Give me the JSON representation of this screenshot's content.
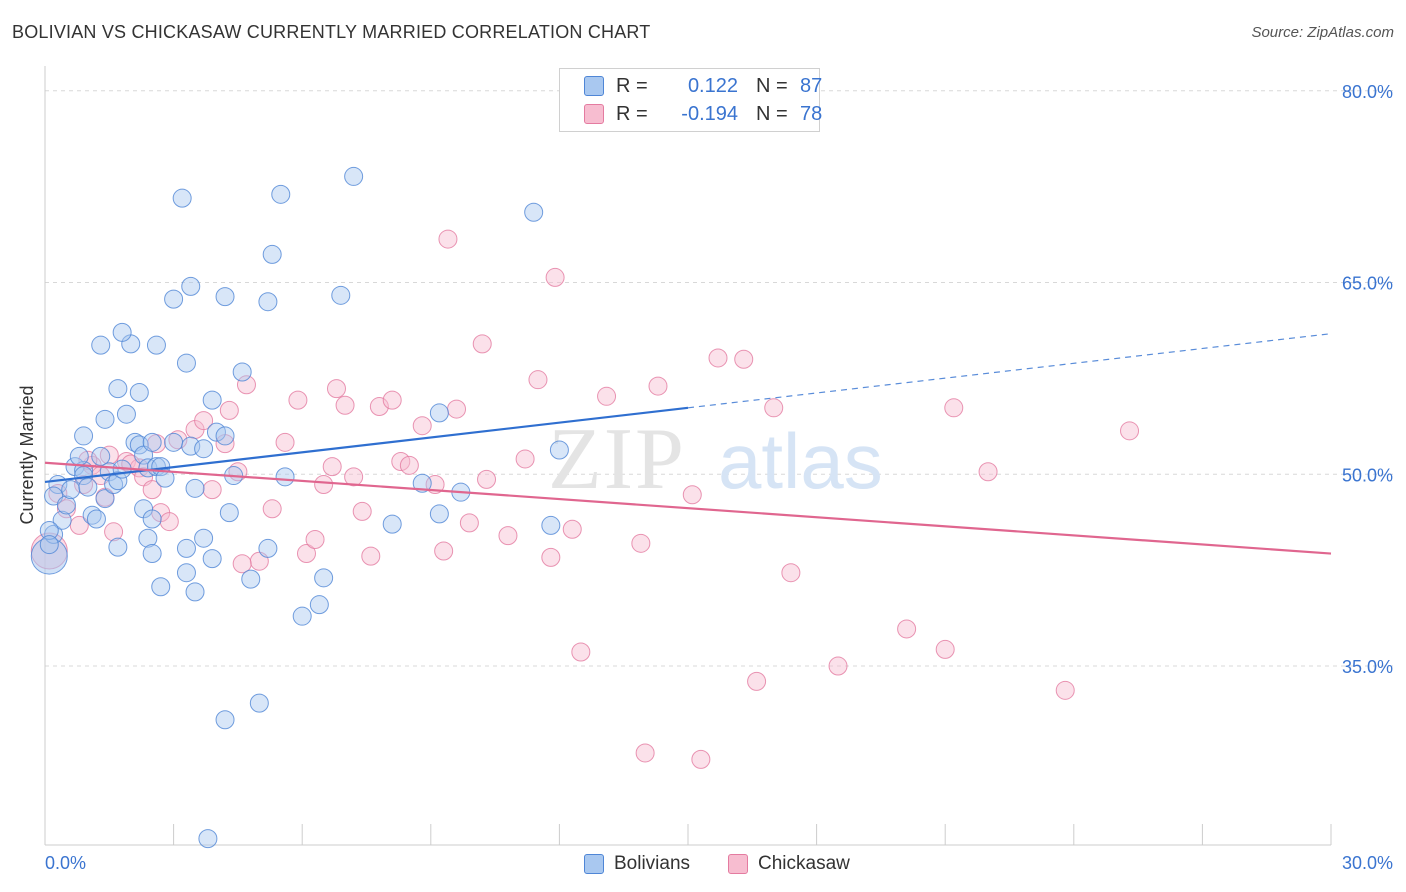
{
  "title": "BOLIVIAN VS CHICKASAW CURRENTLY MARRIED CORRELATION CHART",
  "source": "Source: ZipAtlas.com",
  "watermark": {
    "zip": "ZIP",
    "atlas": "atlas"
  },
  "legend": {
    "r_label": "R =",
    "n_label": "N =",
    "bolivians": {
      "r": "0.122",
      "n": "87"
    },
    "chickasaw": {
      "r": "-0.194",
      "n": "78"
    }
  },
  "colors": {
    "blue_fill": "#a9c8f0",
    "blue_stroke": "#4f86d6",
    "blue_line": "#2f6fd0",
    "pink_fill": "#f7bdd0",
    "pink_stroke": "#e47ba0",
    "pink_line": "#e0668f",
    "axis_text": "#3a74d0",
    "grid": "#d8d8d8"
  },
  "chart_data": {
    "type": "scatter",
    "xlabel": "",
    "ylabel": "Currently Married",
    "xlim": [
      0,
      30
    ],
    "ylim": [
      21,
      81
    ],
    "x_tick_labels": [
      "0.0%",
      "30.0%"
    ],
    "y_ticks": [
      35,
      50,
      65,
      80
    ],
    "y_tick_labels": [
      "35.0%",
      "50.0%",
      "65.0%",
      "80.0%"
    ],
    "series": [
      {
        "name": "Bolivians",
        "r": 0.122,
        "n": 87,
        "trend": {
          "x0": 0,
          "y0": 49.4,
          "x1": 15,
          "y1": 55.2,
          "x_dash_end": 30,
          "y_dash_end": 61.0
        },
        "points": [
          [
            0.1,
            43.6
          ],
          [
            0.2,
            45.3
          ],
          [
            0.3,
            49.2
          ],
          [
            0.2,
            48.3
          ],
          [
            0.4,
            46.4
          ],
          [
            0.5,
            47.6
          ],
          [
            0.6,
            48.8
          ],
          [
            0.7,
            50.6
          ],
          [
            0.9,
            50.3
          ],
          [
            0.8,
            51.4
          ],
          [
            0.9,
            49.9
          ],
          [
            1.1,
            46.8
          ],
          [
            1.2,
            46.5
          ],
          [
            1.0,
            49.0
          ],
          [
            1.3,
            51.4
          ],
          [
            1.4,
            48.1
          ],
          [
            1.5,
            50.2
          ],
          [
            1.6,
            49.2
          ],
          [
            1.7,
            49.5
          ],
          [
            1.8,
            50.4
          ],
          [
            0.9,
            53.0
          ],
          [
            1.4,
            54.3
          ],
          [
            1.9,
            54.7
          ],
          [
            2.1,
            52.5
          ],
          [
            2.2,
            52.3
          ],
          [
            2.3,
            51.5
          ],
          [
            2.4,
            50.5
          ],
          [
            2.6,
            50.6
          ],
          [
            2.7,
            50.6
          ],
          [
            2.5,
            52.5
          ],
          [
            2.8,
            49.7
          ],
          [
            3.0,
            52.5
          ],
          [
            3.4,
            52.2
          ],
          [
            3.5,
            48.9
          ],
          [
            3.7,
            52.0
          ],
          [
            4.0,
            53.3
          ],
          [
            4.2,
            53.0
          ],
          [
            4.4,
            49.9
          ],
          [
            1.7,
            56.7
          ],
          [
            2.2,
            56.4
          ],
          [
            2.0,
            60.2
          ],
          [
            2.6,
            60.1
          ],
          [
            3.3,
            58.7
          ],
          [
            3.9,
            55.8
          ],
          [
            4.6,
            58.0
          ],
          [
            1.8,
            61.1
          ],
          [
            1.3,
            60.1
          ],
          [
            3.0,
            63.7
          ],
          [
            3.4,
            64.7
          ],
          [
            4.2,
            63.9
          ],
          [
            5.2,
            63.5
          ],
          [
            6.9,
            64.0
          ],
          [
            5.3,
            67.2
          ],
          [
            5.5,
            71.9
          ],
          [
            3.2,
            71.6
          ],
          [
            7.2,
            73.3
          ],
          [
            11.4,
            70.5
          ],
          [
            1.7,
            44.3
          ],
          [
            2.3,
            47.3
          ],
          [
            2.4,
            45.0
          ],
          [
            2.5,
            46.5
          ],
          [
            2.5,
            43.8
          ],
          [
            2.7,
            41.2
          ],
          [
            3.3,
            44.2
          ],
          [
            3.3,
            42.3
          ],
          [
            3.5,
            40.8
          ],
          [
            3.7,
            45.0
          ],
          [
            3.9,
            43.4
          ],
          [
            4.3,
            47.0
          ],
          [
            4.8,
            41.8
          ],
          [
            5.2,
            44.2
          ],
          [
            5.6,
            49.8
          ],
          [
            6.0,
            38.9
          ],
          [
            6.4,
            39.8
          ],
          [
            6.5,
            41.9
          ],
          [
            8.1,
            46.1
          ],
          [
            8.8,
            49.3
          ],
          [
            9.2,
            46.9
          ],
          [
            9.7,
            48.6
          ],
          [
            11.8,
            46.0
          ],
          [
            12.0,
            51.9
          ],
          [
            9.2,
            54.8
          ],
          [
            4.2,
            30.8
          ],
          [
            5.0,
            32.1
          ],
          [
            3.8,
            21.5
          ],
          [
            0.1,
            45.6
          ],
          [
            0.1,
            44.5
          ]
        ]
      },
      {
        "name": "Chickasaw",
        "r": -0.194,
        "n": 78,
        "trend": {
          "x0": 0,
          "y0": 50.9,
          "x1": 30,
          "y1": 43.8
        },
        "points": [
          [
            0.1,
            44.0
          ],
          [
            0.3,
            48.5
          ],
          [
            0.5,
            47.3
          ],
          [
            0.8,
            46.0
          ],
          [
            0.9,
            49.2
          ],
          [
            1.1,
            50.7
          ],
          [
            1.3,
            49.9
          ],
          [
            1.4,
            48.2
          ],
          [
            1.6,
            45.5
          ],
          [
            1.9,
            51.0
          ],
          [
            2.2,
            50.5
          ],
          [
            2.3,
            49.8
          ],
          [
            2.5,
            48.8
          ],
          [
            2.7,
            47.0
          ],
          [
            2.9,
            46.3
          ],
          [
            3.1,
            52.7
          ],
          [
            3.5,
            53.5
          ],
          [
            3.7,
            54.2
          ],
          [
            3.9,
            48.8
          ],
          [
            4.2,
            52.4
          ],
          [
            4.3,
            55.0
          ],
          [
            4.5,
            50.2
          ],
          [
            4.7,
            57.0
          ],
          [
            5.0,
            43.2
          ],
          [
            5.3,
            47.3
          ],
          [
            5.6,
            52.5
          ],
          [
            5.9,
            55.8
          ],
          [
            6.1,
            43.8
          ],
          [
            6.3,
            44.9
          ],
          [
            6.5,
            49.2
          ],
          [
            6.8,
            56.7
          ],
          [
            7.0,
            55.4
          ],
          [
            7.2,
            49.8
          ],
          [
            7.4,
            47.1
          ],
          [
            7.6,
            43.6
          ],
          [
            7.8,
            55.3
          ],
          [
            8.1,
            55.8
          ],
          [
            8.3,
            51.0
          ],
          [
            8.5,
            50.7
          ],
          [
            8.8,
            53.8
          ],
          [
            9.1,
            49.2
          ],
          [
            9.3,
            44.0
          ],
          [
            9.6,
            55.1
          ],
          [
            9.9,
            46.2
          ],
          [
            10.3,
            49.6
          ],
          [
            10.8,
            45.2
          ],
          [
            11.2,
            51.2
          ],
          [
            11.5,
            57.4
          ],
          [
            11.8,
            43.5
          ],
          [
            12.3,
            45.7
          ],
          [
            12.5,
            36.1
          ],
          [
            13.1,
            56.1
          ],
          [
            13.9,
            44.6
          ],
          [
            14.3,
            56.9
          ],
          [
            15.1,
            48.4
          ],
          [
            15.7,
            59.1
          ],
          [
            16.3,
            59.0
          ],
          [
            16.6,
            33.8
          ],
          [
            17.0,
            55.2
          ],
          [
            17.4,
            42.3
          ],
          [
            18.5,
            35.0
          ],
          [
            20.1,
            37.9
          ],
          [
            21.2,
            55.2
          ],
          [
            21.0,
            36.3
          ],
          [
            22.0,
            50.2
          ],
          [
            23.8,
            33.1
          ],
          [
            25.3,
            53.4
          ],
          [
            9.4,
            68.4
          ],
          [
            11.9,
            65.4
          ],
          [
            10.2,
            60.2
          ],
          [
            14.0,
            28.2
          ],
          [
            15.3,
            27.7
          ],
          [
            1.5,
            51.5
          ],
          [
            2.0,
            50.8
          ],
          [
            4.6,
            43.0
          ],
          [
            6.7,
            50.6
          ],
          [
            2.6,
            52.4
          ],
          [
            1.0,
            51.1
          ]
        ]
      }
    ]
  }
}
